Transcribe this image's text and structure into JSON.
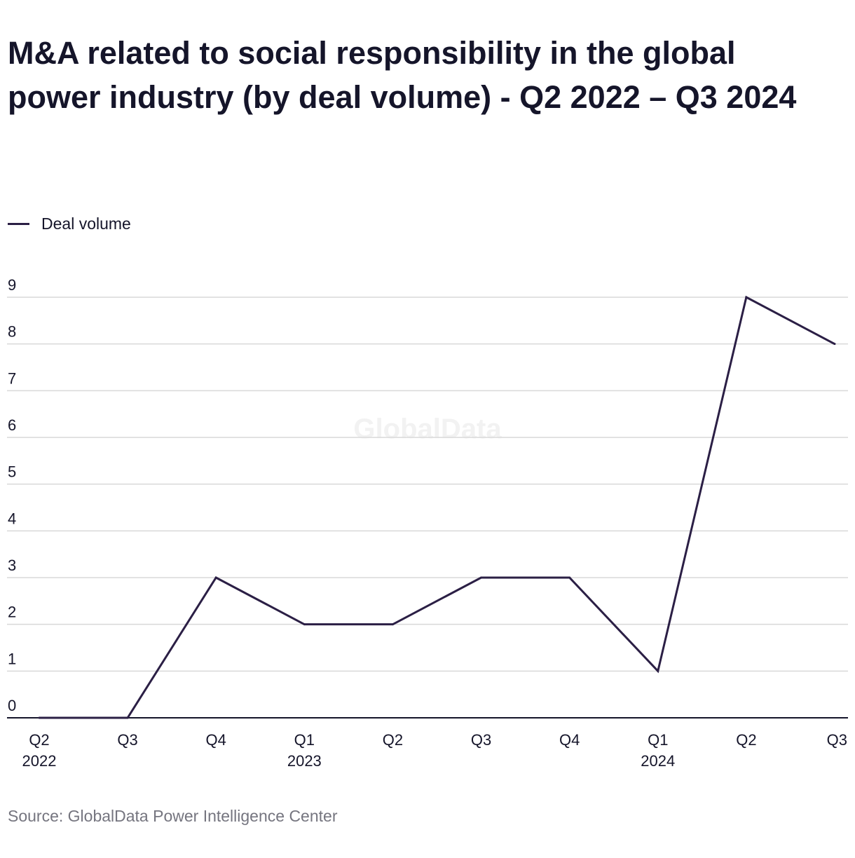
{
  "chart_data": {
    "type": "line",
    "title": "M&A related to social responsibility in the global power industry (by deal volume) - Q2 2022 – Q3 2024",
    "categories": [
      {
        "quarter": "Q2",
        "year": "2022"
      },
      {
        "quarter": "Q3",
        "year": ""
      },
      {
        "quarter": "Q4",
        "year": ""
      },
      {
        "quarter": "Q1",
        "year": "2023"
      },
      {
        "quarter": "Q2",
        "year": ""
      },
      {
        "quarter": "Q3",
        "year": ""
      },
      {
        "quarter": "Q4",
        "year": ""
      },
      {
        "quarter": "Q1",
        "year": "2024"
      },
      {
        "quarter": "Q2",
        "year": ""
      },
      {
        "quarter": "Q3",
        "year": ""
      }
    ],
    "series": [
      {
        "name": "Deal volume",
        "values": [
          0,
          0,
          3,
          2,
          2,
          3,
          3,
          1,
          9,
          8
        ],
        "color": "#2b1f45"
      }
    ],
    "ylim": [
      0,
      9
    ],
    "yticks": [
      0,
      1,
      2,
      3,
      4,
      5,
      6,
      7,
      8,
      9
    ],
    "grid": true,
    "legend_position": "top-left",
    "xlabel": "",
    "ylabel": "",
    "source": "Source: GlobalData Power Intelligence Center",
    "watermark": "GlobalData"
  }
}
